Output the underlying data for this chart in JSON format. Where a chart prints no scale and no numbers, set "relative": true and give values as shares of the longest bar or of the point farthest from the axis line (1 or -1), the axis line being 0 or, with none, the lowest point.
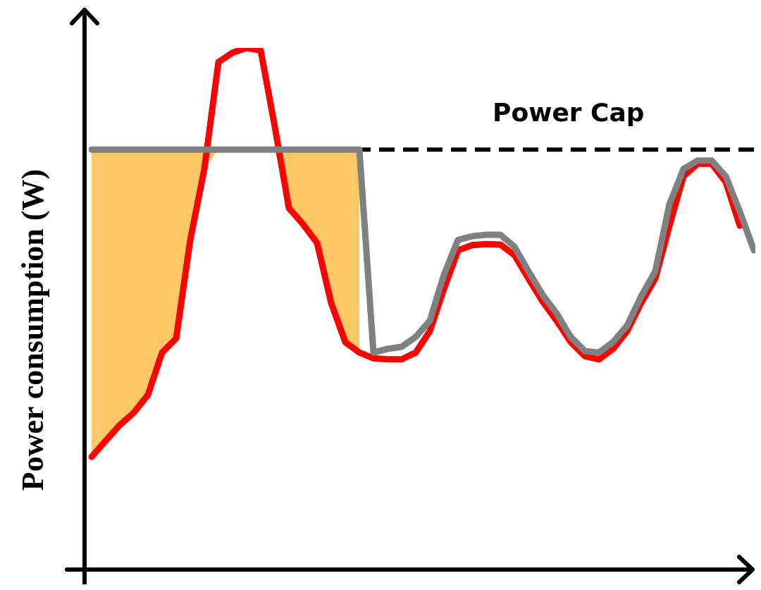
{
  "chart_data": {
    "type": "line",
    "relative": true,
    "ylabel": "Power consumption (W)",
    "categories": [
      null,
      null,
      null,
      null,
      null,
      null,
      null,
      null,
      null,
      null,
      null,
      null,
      null,
      null,
      null,
      null,
      null,
      null,
      null,
      null,
      null,
      null,
      null,
      null,
      null,
      null,
      null,
      null,
      null,
      null,
      null,
      null,
      null,
      null,
      null,
      null,
      null,
      null,
      null,
      null,
      null,
      null,
      null,
      null,
      null,
      null,
      null,
      null
    ],
    "series": [
      {
        "color": "#ff0000",
        "values": [
          0.216,
          0.247,
          0.277,
          0.301,
          0.335,
          0.416,
          0.443,
          0.632,
          0.768,
          0.973,
          0.991,
          1.0,
          0.995,
          0.849,
          0.693,
          0.662,
          0.626,
          0.511,
          0.436,
          0.416,
          0.405,
          0.403,
          0.403,
          0.416,
          0.457,
          0.538,
          0.612,
          0.622,
          0.624,
          0.623,
          0.603,
          0.558,
          0.514,
          0.477,
          0.436,
          0.409,
          0.403,
          0.423,
          0.457,
          0.511,
          0.558,
          0.659,
          0.754,
          0.778,
          0.778,
          0.743,
          0.659,
          null
        ],
        "lower": [
          0.216,
          0.247,
          0.277,
          0.301,
          0.335,
          0.416,
          0.443,
          0.632,
          0.768,
          0.805,
          0.805,
          0.805,
          0.805,
          0.805,
          0.693,
          0.662,
          0.626,
          0.511,
          0.436,
          0.416,
          null,
          null,
          null,
          null,
          null,
          null,
          null,
          null,
          null,
          null,
          null,
          null,
          null,
          null,
          null,
          null,
          null,
          null,
          null,
          null,
          null,
          null,
          null,
          null,
          null,
          null,
          null,
          null
        ],
        "upper": [
          0.805,
          0.805,
          0.805,
          0.805,
          0.805,
          0.805,
          0.805,
          0.805,
          0.805,
          0.805,
          0.805,
          0.805,
          0.805,
          0.805,
          0.805,
          0.805,
          0.805,
          0.805,
          0.805,
          0.805,
          null,
          null,
          null,
          null,
          null,
          null,
          null,
          null,
          null,
          null,
          null,
          null,
          null,
          null,
          null,
          null,
          null,
          null,
          null,
          null,
          null,
          null,
          null,
          null,
          null,
          null,
          null,
          null
        ]
      },
      {
        "color": "#808080",
        "values": [
          0.805,
          0.805,
          0.805,
          0.805,
          0.805,
          0.805,
          0.805,
          0.805,
          0.805,
          0.805,
          0.805,
          0.805,
          0.805,
          0.805,
          0.805,
          0.805,
          0.805,
          0.805,
          0.805,
          0.805,
          0.416,
          0.423,
          0.427,
          0.446,
          0.477,
          0.565,
          0.632,
          0.639,
          0.642,
          0.642,
          0.619,
          0.572,
          0.527,
          0.491,
          0.446,
          0.419,
          0.416,
          0.436,
          0.468,
          0.524,
          0.572,
          0.7,
          0.768,
          0.784,
          0.784,
          0.754,
          0.686,
          0.612
        ]
      }
    ],
    "ref_lines": [
      {
        "axis": "y",
        "value": 0.805,
        "label": "Power Cap",
        "color": "#000000",
        "line_style": "dashed"
      }
    ],
    "legend": false
  }
}
